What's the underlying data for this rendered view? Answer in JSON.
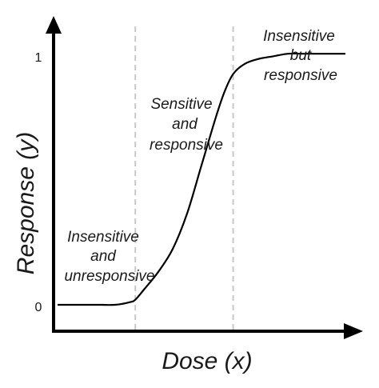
{
  "chart_data": {
    "type": "line",
    "title": "",
    "xlabel": "Dose (x)",
    "ylabel": "Response (y)",
    "y_ticks": [
      "0",
      "1"
    ],
    "ylim": [
      0,
      1
    ],
    "x_axis_arrow": true,
    "y_axis_arrow": true,
    "x_tick_labels_shown": false,
    "grid": false,
    "boundaries": [
      0.27,
      0.61
    ],
    "curve": {
      "x": [
        0,
        0.05,
        0.1,
        0.15,
        0.2,
        0.25,
        0.27,
        0.3,
        0.35,
        0.4,
        0.45,
        0.5,
        0.55,
        0.58,
        0.61,
        0.65,
        0.7,
        0.75,
        0.8,
        0.85,
        0.9,
        0.95,
        1.0
      ],
      "y": [
        0.0,
        0.0,
        0.0,
        0.0,
        0.0,
        0.01,
        0.02,
        0.06,
        0.13,
        0.22,
        0.36,
        0.55,
        0.74,
        0.84,
        0.91,
        0.95,
        0.97,
        0.98,
        0.99,
        0.99,
        0.99,
        0.99,
        0.99
      ]
    },
    "annotations": [
      {
        "id": "insensitive-unresponsive",
        "lines": [
          "Insensitive",
          "and",
          "unresponsive"
        ]
      },
      {
        "id": "sensitive-responsive",
        "lines": [
          "Sensitive",
          "and",
          "responsive"
        ]
      },
      {
        "id": "insensitive-responsive",
        "lines": [
          "Insensitive",
          "but",
          "responsive"
        ]
      }
    ]
  },
  "colors": {
    "axis": "#000000",
    "curve": "#000000",
    "boundary": "#c8c8c8",
    "text": "#1a1a1a"
  }
}
